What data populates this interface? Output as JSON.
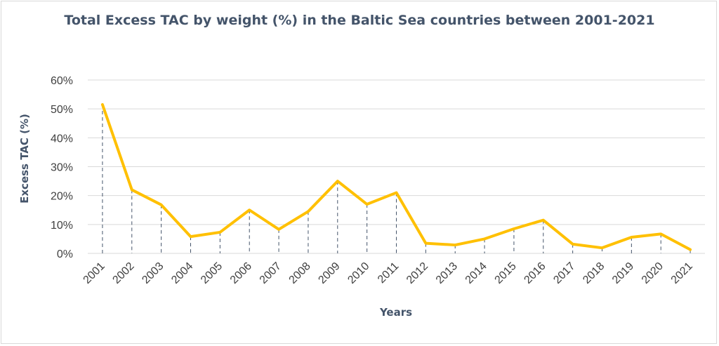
{
  "chart_data": {
    "type": "line",
    "title": "Total Excess TAC by weight (%) in the Baltic Sea countries between 2001-2021",
    "xlabel": "Years",
    "ylabel": "Excess TAC (%)",
    "categories": [
      "2001",
      "2002",
      "2003",
      "2004",
      "2005",
      "2006",
      "2007",
      "2008",
      "2009",
      "2010",
      "2011",
      "2012",
      "2013",
      "2014",
      "2015",
      "2016",
      "2017",
      "2018",
      "2019",
      "2020",
      "2021"
    ],
    "series": [
      {
        "values": [
          51.5,
          22.0,
          16.8,
          5.8,
          7.3,
          15.0,
          8.3,
          14.5,
          25.0,
          17.0,
          21.0,
          3.5,
          2.9,
          5.0,
          8.5,
          11.5,
          3.2,
          1.9,
          5.6,
          6.7,
          1.3
        ]
      }
    ],
    "ylim": [
      0,
      60
    ],
    "yticks": [
      "0%",
      "10%",
      "20%",
      "30%",
      "40%",
      "50%",
      "60%"
    ],
    "grid": true,
    "drop_lines": true,
    "legend": "none",
    "line_color": "#ffc000",
    "grid_color": "#d9d9d9",
    "drop_line_color": "#44546a"
  }
}
